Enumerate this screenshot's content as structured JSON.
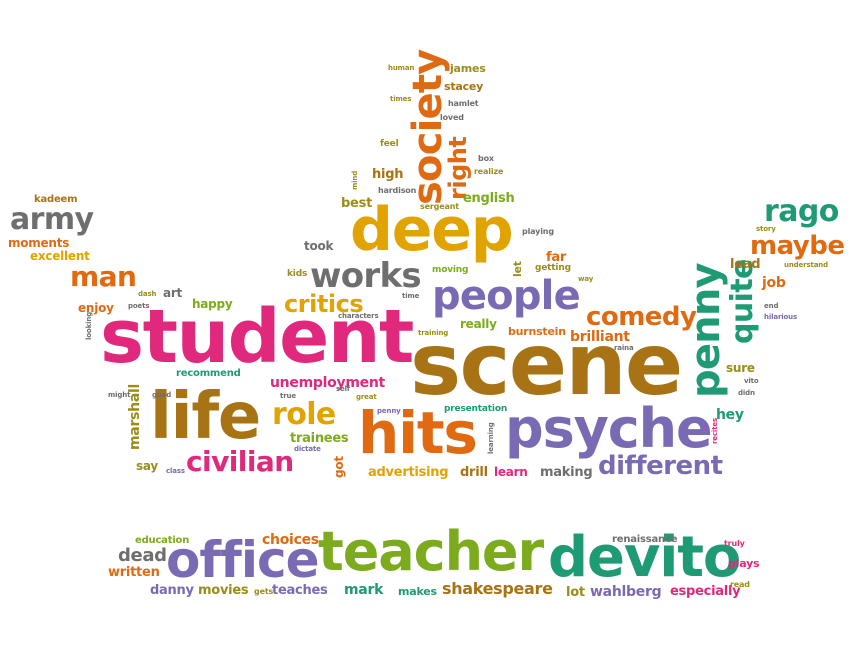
{
  "colors": {
    "pink": "#e0287c",
    "orange": "#e06a12",
    "gold": "#e0a300",
    "brown": "#a87314",
    "green": "#7cab1e",
    "teal": "#1e9a74",
    "purple": "#7a6ab4",
    "gray": "#6e6e6e",
    "olive": "#9a8d1a"
  },
  "words": {
    "student": "student",
    "scene": "scene",
    "teacher": "teacher",
    "devito": "devito",
    "office": "office",
    "deep": "deep",
    "life": "life",
    "hits": "hits",
    "psyche": "psyche",
    "people": "people",
    "works": "works",
    "society": "society",
    "penny": "penny",
    "quite": "quite",
    "comedy": "comedy",
    "different": "different",
    "civilian": "civilian",
    "role": "role",
    "critics": "critics",
    "army": "army",
    "man": "man",
    "rago": "rago",
    "maybe": "maybe",
    "right": "right",
    "unemployment": "unemployment",
    "marshall": "marshall",
    "trainees": "trainees",
    "advertising": "advertising",
    "drill": "drill",
    "learn": "learn",
    "making": "making",
    "brilliant": "brilliant",
    "burnstein": "burnstein",
    "really": "really",
    "shakespeare": "shakespeare",
    "choices": "choices",
    "dead": "dead",
    "written": "written",
    "danny": "danny",
    "movies": "movies",
    "teaches": "teaches",
    "mark": "mark",
    "makes": "makes",
    "lot": "lot",
    "wahlberg": "wahlberg",
    "especially": "especially",
    "plays": "plays",
    "renaissance": "renaissance",
    "education": "education",
    "english": "english",
    "best": "best",
    "high": "high",
    "james": "james",
    "stacey": "stacey",
    "far": "far",
    "getting": "getting",
    "moving": "moving",
    "let": "let",
    "took": "took",
    "kids": "kids",
    "art": "art",
    "happy": "happy",
    "enjoy": "enjoy",
    "excellent": "excellent",
    "moments": "moments",
    "kadeem": "kadeem",
    "recommend": "recommend",
    "say": "say",
    "sure": "sure",
    "job": "job",
    "lead": "lead",
    "hey": "hey",
    "presentation": "presentation",
    "got": "got",
    "feel": "feel",
    "hamlet": "hamlet",
    "loved": "loved",
    "box": "box",
    "realize": "realize",
    "hardison": "hardison",
    "sergeant": "sergeant",
    "playing": "playing",
    "story": "story",
    "understand": "understand",
    "way": "way",
    "end": "end",
    "hilarious": "hilarious",
    "raina": "raina",
    "vito": "vito",
    "didn": "didn",
    "recites": "recites",
    "class": "class",
    "might": "might",
    "good": "good",
    "true": "true",
    "dictate": "dictate",
    "self": "self",
    "great": "great",
    "penny_small": "penny",
    "learning": "learning",
    "training": "training",
    "characters": "characters",
    "time": "time",
    "dash": "dash",
    "poets": "poets",
    "looking": "looking",
    "truly": "truly",
    "read": "read",
    "gets": "gets",
    "human": "human",
    "mind": "mind",
    "times": "times"
  }
}
